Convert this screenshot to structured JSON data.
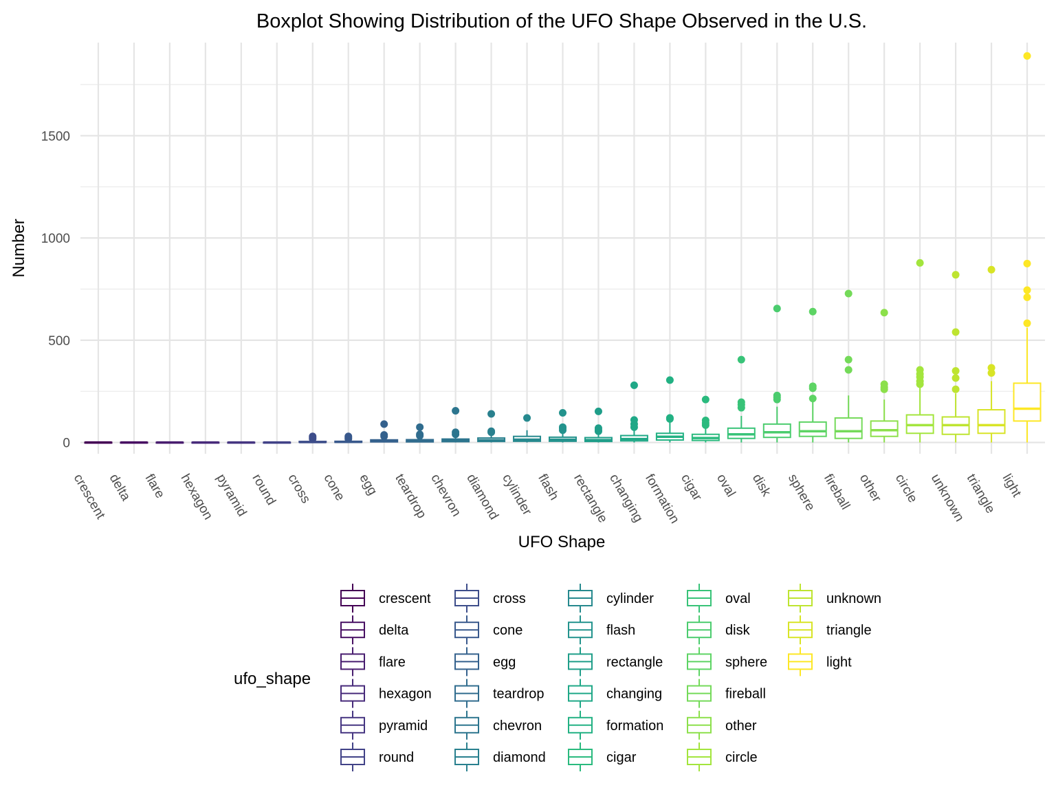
{
  "chart_data": {
    "type": "boxplot",
    "title": "Boxplot Showing Distribution of the UFO Shape Observed in the U.S.",
    "xlabel": "UFO Shape",
    "ylabel": "Number",
    "ylim": [
      -55,
      1955
    ],
    "yticks": [
      0,
      500,
      1000,
      1500
    ],
    "grid": true,
    "legend_title": "ufo_shape",
    "legend_position": "bottom",
    "categories": [
      "crescent",
      "delta",
      "flare",
      "hexagon",
      "pyramid",
      "round",
      "cross",
      "cone",
      "egg",
      "teardrop",
      "chevron",
      "diamond",
      "cylinder",
      "flash",
      "rectangle",
      "changing",
      "formation",
      "cigar",
      "oval",
      "disk",
      "sphere",
      "fireball",
      "other",
      "circle",
      "unknown",
      "triangle",
      "light"
    ],
    "colors": [
      "#440154",
      "#470f62",
      "#481d6f",
      "#472a7a",
      "#453581",
      "#414287",
      "#3d4d8a",
      "#38588c",
      "#34618d",
      "#306c8e",
      "#2c758e",
      "#29808e",
      "#26898e",
      "#23938d",
      "#1f9e89",
      "#1fa887",
      "#22b183",
      "#2aba7e",
      "#38c378",
      "#4bcc6e",
      "#5dd464",
      "#74da59",
      "#8ce04b",
      "#a3e53d",
      "#bee430",
      "#d8e426",
      "#fde725"
    ],
    "series": [
      {
        "name": "crescent",
        "min": 0,
        "q1": 0,
        "median": 0,
        "q3": 1,
        "max": 2,
        "outliers": []
      },
      {
        "name": "delta",
        "min": 0,
        "q1": 0,
        "median": 0,
        "q3": 1,
        "max": 2,
        "outliers": []
      },
      {
        "name": "flare",
        "min": 0,
        "q1": 0,
        "median": 0,
        "q3": 1,
        "max": 2,
        "outliers": []
      },
      {
        "name": "hexagon",
        "min": 0,
        "q1": 0,
        "median": 0,
        "q3": 1,
        "max": 2,
        "outliers": []
      },
      {
        "name": "pyramid",
        "min": 0,
        "q1": 0,
        "median": 0,
        "q3": 1,
        "max": 2,
        "outliers": []
      },
      {
        "name": "round",
        "min": 0,
        "q1": 0,
        "median": 0,
        "q3": 1,
        "max": 2,
        "outliers": []
      },
      {
        "name": "cross",
        "min": 0,
        "q1": 1,
        "median": 2,
        "q3": 5,
        "max": 10,
        "outliers": [
          18,
          24,
          30
        ]
      },
      {
        "name": "cone",
        "min": 0,
        "q1": 1,
        "median": 3,
        "q3": 6,
        "max": 12,
        "outliers": [
          18,
          24,
          30
        ]
      },
      {
        "name": "egg",
        "min": 0,
        "q1": 3,
        "median": 7,
        "q3": 13,
        "max": 25,
        "outliers": [
          30,
          37,
          90
        ]
      },
      {
        "name": "teardrop",
        "min": 0,
        "q1": 3,
        "median": 8,
        "q3": 14,
        "max": 28,
        "outliers": [
          33,
          40,
          75
        ]
      },
      {
        "name": "chevron",
        "min": 0,
        "q1": 4,
        "median": 9,
        "q3": 17,
        "max": 32,
        "outliers": [
          40,
          50,
          155
        ]
      },
      {
        "name": "diamond",
        "min": 0,
        "q1": 5,
        "median": 11,
        "q3": 22,
        "max": 40,
        "outliers": [
          50,
          55,
          140
        ]
      },
      {
        "name": "cylinder",
        "min": 0,
        "q1": 6,
        "median": 14,
        "q3": 30,
        "max": 60,
        "outliers": [
          120
        ]
      },
      {
        "name": "flash",
        "min": 0,
        "q1": 6,
        "median": 14,
        "q3": 26,
        "max": 50,
        "outliers": [
          60,
          70,
          75,
          145
        ]
      },
      {
        "name": "rectangle",
        "min": 0,
        "q1": 5,
        "median": 12,
        "q3": 24,
        "max": 45,
        "outliers": [
          55,
          60,
          70,
          152
        ]
      },
      {
        "name": "changing",
        "min": 0,
        "q1": 8,
        "median": 17,
        "q3": 34,
        "max": 65,
        "outliers": [
          75,
          90,
          110,
          280
        ]
      },
      {
        "name": "formation",
        "min": 0,
        "q1": 12,
        "median": 28,
        "q3": 45,
        "max": 100,
        "outliers": [
          115,
          120,
          305
        ]
      },
      {
        "name": "cigar",
        "min": 0,
        "q1": 10,
        "median": 22,
        "q3": 40,
        "max": 75,
        "outliers": [
          85,
          95,
          108,
          210
        ]
      },
      {
        "name": "oval",
        "min": 0,
        "q1": 20,
        "median": 40,
        "q3": 70,
        "max": 130,
        "outliers": [
          170,
          185,
          197,
          405
        ]
      },
      {
        "name": "disk",
        "min": 0,
        "q1": 25,
        "median": 50,
        "q3": 90,
        "max": 175,
        "outliers": [
          210,
          220,
          230,
          655
        ]
      },
      {
        "name": "sphere",
        "min": 0,
        "q1": 30,
        "median": 55,
        "q3": 100,
        "max": 200,
        "outliers": [
          215,
          265,
          275,
          640
        ]
      },
      {
        "name": "fireball",
        "min": 0,
        "q1": 20,
        "median": 55,
        "q3": 120,
        "max": 230,
        "outliers": [
          355,
          405,
          728
        ]
      },
      {
        "name": "other",
        "min": 0,
        "q1": 30,
        "median": 60,
        "q3": 105,
        "max": 210,
        "outliers": [
          260,
          270,
          285,
          635
        ]
      },
      {
        "name": "circle",
        "min": 0,
        "q1": 45,
        "median": 85,
        "q3": 135,
        "max": 270,
        "outliers": [
          285,
          300,
          320,
          335,
          355,
          878
        ]
      },
      {
        "name": "unknown",
        "min": 0,
        "q1": 40,
        "median": 85,
        "q3": 125,
        "max": 240,
        "outliers": [
          260,
          315,
          350,
          540,
          820
        ]
      },
      {
        "name": "triangle",
        "min": 0,
        "q1": 45,
        "median": 85,
        "q3": 160,
        "max": 300,
        "outliers": [
          340,
          365,
          845
        ]
      },
      {
        "name": "light",
        "min": 0,
        "q1": 105,
        "median": 165,
        "q3": 290,
        "max": 560,
        "outliers": [
          583,
          710,
          745,
          875,
          1890
        ]
      }
    ]
  }
}
